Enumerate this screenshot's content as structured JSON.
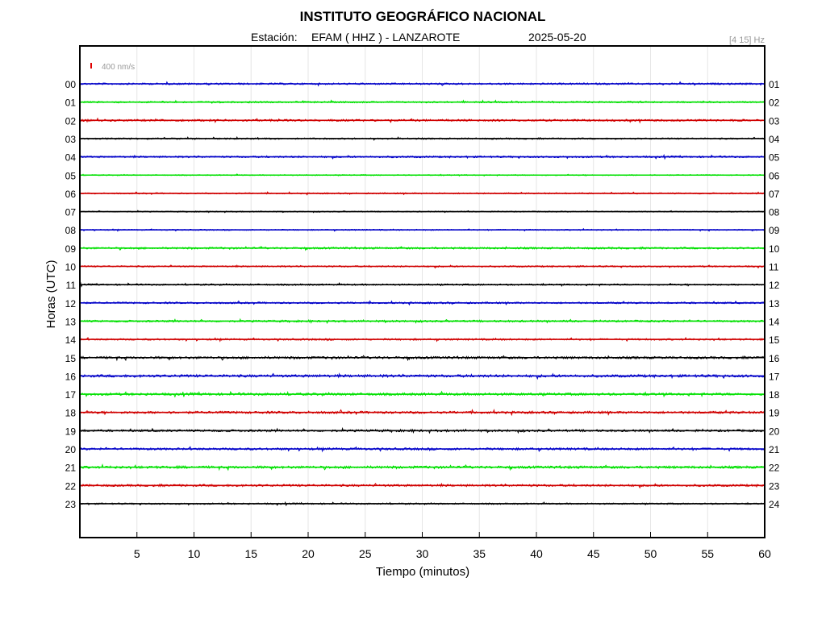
{
  "header": {
    "title": "INSTITUTO GEOGRÁFICO NACIONAL",
    "station_label": "Estación:",
    "station": "EFAM ( HHZ ) - LANZAROTE",
    "date": "2025-05-20",
    "filter": "[4 15] Hz"
  },
  "scale_bar": {
    "label": "400 nm/s",
    "color": "#e00000"
  },
  "chart_data": {
    "type": "line",
    "xlabel": "Tiempo (minutos)",
    "ylabel": "Horas (UTC)",
    "xlim": [
      0,
      60
    ],
    "x_ticks": [
      5,
      10,
      15,
      20,
      25,
      30,
      35,
      40,
      45,
      50,
      55,
      60
    ],
    "grid": true,
    "left_hour_labels": [
      "00",
      "01",
      "02",
      "03",
      "04",
      "05",
      "06",
      "07",
      "08",
      "09",
      "10",
      "11",
      "12",
      "13",
      "14",
      "15",
      "16",
      "17",
      "18",
      "19",
      "20",
      "21",
      "22",
      "23"
    ],
    "right_hour_labels": [
      "01",
      "02",
      "03",
      "04",
      "05",
      "06",
      "07",
      "08",
      "09",
      "10",
      "11",
      "12",
      "13",
      "14",
      "15",
      "16",
      "17",
      "18",
      "19",
      "20",
      "21",
      "22",
      "23",
      "24"
    ],
    "trace_colors": [
      "#0000c8",
      "#00e000",
      "#d00000",
      "#000000"
    ],
    "trace_amplitude_nm_s": [
      60,
      55,
      70,
      50,
      60,
      35,
      45,
      35,
      40,
      65,
      50,
      55,
      60,
      65,
      60,
      80,
      90,
      85,
      80,
      75,
      75,
      85,
      75,
      50
    ]
  }
}
